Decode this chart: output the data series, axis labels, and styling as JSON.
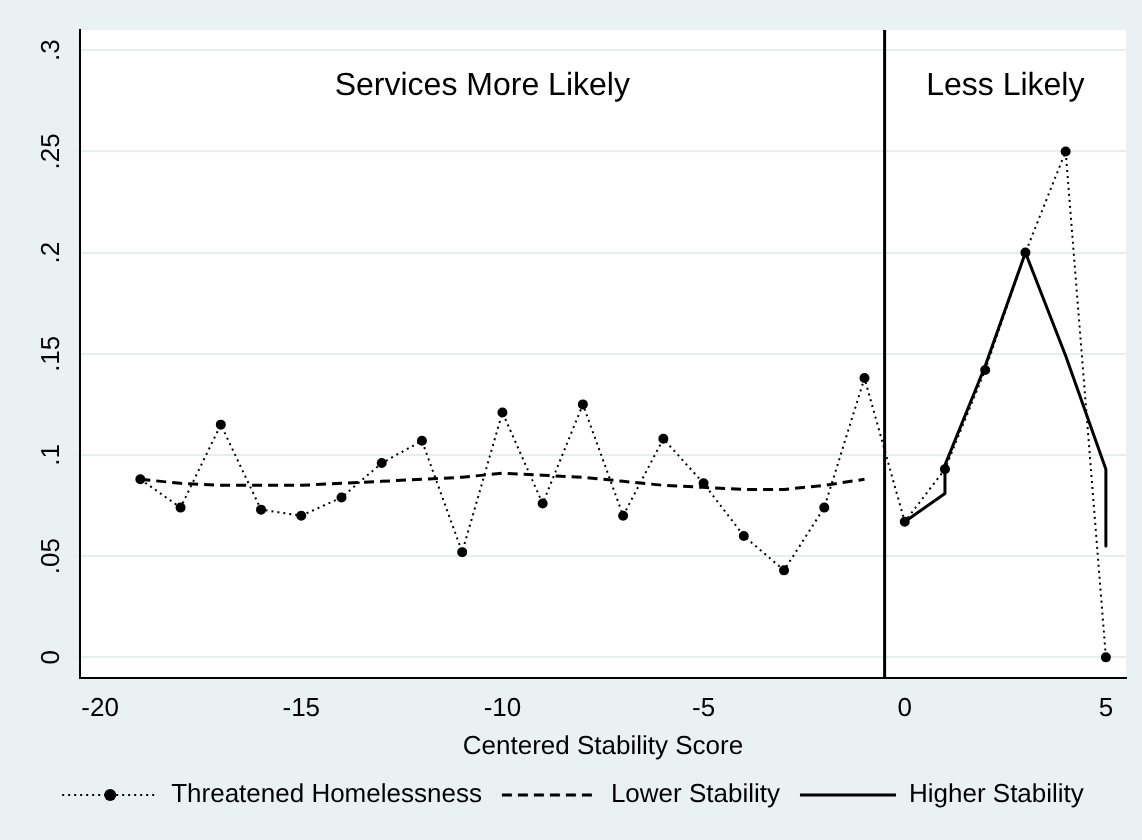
{
  "chart_data": {
    "type": "line",
    "xlabel": "Centered Stability Score",
    "xlim": [
      -20.5,
      5.5
    ],
    "xticks": [
      -20,
      -15,
      -10,
      -5,
      0,
      5
    ],
    "ylim": [
      -0.01,
      0.31
    ],
    "yticks": [
      {
        "value": 0,
        "label": "0"
      },
      {
        "value": 0.05,
        "label": ".05"
      },
      {
        "value": 0.1,
        "label": ".1"
      },
      {
        "value": 0.15,
        "label": ".15"
      },
      {
        "value": 0.2,
        "label": ".2"
      },
      {
        "value": 0.25,
        "label": ".25"
      },
      {
        "value": 0.3,
        "label": ".3"
      }
    ],
    "grid": "y",
    "legend": "bottom",
    "series": [
      {
        "name": "Threatened Homelessness",
        "color": "#000000",
        "marker": "circle",
        "line_style": "dotted",
        "x": [
          -19,
          -18,
          -17,
          -16,
          -15,
          -14,
          -13,
          -12,
          -11,
          -10,
          -9,
          -8,
          -7,
          -6,
          -5,
          -4,
          -3,
          -2,
          -1,
          0,
          1,
          2,
          3,
          4,
          5
        ],
        "values": [
          0.088,
          0.074,
          0.115,
          0.073,
          0.07,
          0.079,
          0.096,
          0.107,
          0.052,
          0.121,
          0.076,
          0.125,
          0.07,
          0.108,
          0.086,
          0.06,
          0.043,
          0.074,
          0.138,
          0.067,
          0.093,
          0.142,
          0.2,
          0.25,
          0
        ]
      },
      {
        "name": "Lower Stability",
        "color": "#000000",
        "marker": "none",
        "line_style": "dashed",
        "x": [
          -19,
          -18,
          -17,
          -16,
          -15,
          -14,
          -13,
          -12,
          -11,
          -10,
          -9,
          -8,
          -7,
          -6,
          -5,
          -4,
          -3,
          -2,
          -1
        ],
        "values": [
          0.088,
          0.086,
          0.085,
          0.085,
          0.085,
          0.086,
          0.087,
          0.088,
          0.089,
          0.091,
          0.09,
          0.089,
          0.087,
          0.085,
          0.084,
          0.083,
          0.083,
          0.085,
          0.088
        ]
      },
      {
        "name": "Higher Stability",
        "color": "#000000",
        "marker": "none",
        "line_style": "solid",
        "x": [
          0,
          1,
          1,
          2,
          3,
          4,
          5,
          5
        ],
        "values": [
          0.067,
          0.081,
          0.095,
          0.144,
          0.2,
          0.149,
          0.093,
          0.055
        ]
      }
    ],
    "ref_lines": [
      {
        "axis": "x",
        "value": -0.5,
        "color": "#000000"
      }
    ],
    "annotations": [
      "Services More Likely",
      "Less Likely"
    ]
  }
}
